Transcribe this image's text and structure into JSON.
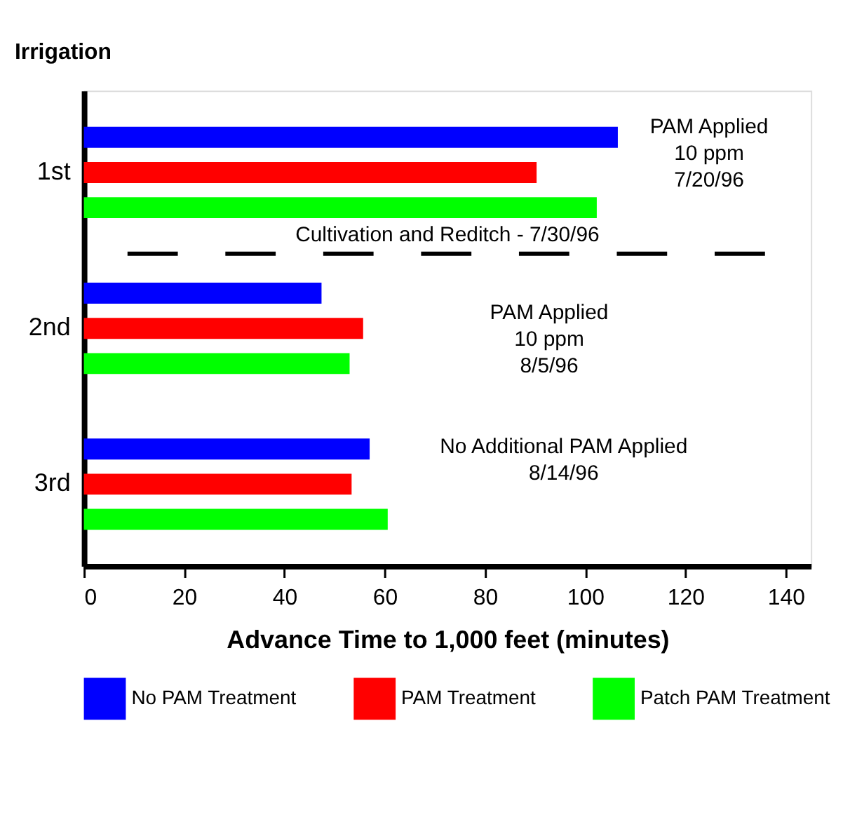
{
  "chart_data": {
    "type": "bar",
    "orientation": "horizontal",
    "xlabel": "Advance Time to 1,000 feet (minutes)",
    "ylabel": "Irrigation",
    "categories": [
      "1st",
      "2nd",
      "3rd"
    ],
    "series": [
      {
        "name": "No PAM Treatment",
        "color": "#0000ff",
        "values": [
          106.5,
          47.4,
          57
        ]
      },
      {
        "name": "PAM Treatment",
        "color": "#ff0000",
        "values": [
          90.3,
          55.7,
          53.4
        ]
      },
      {
        "name": "Patch PAM Treatment",
        "color": "#00ff00",
        "values": [
          102.3,
          53,
          60.6
        ]
      }
    ],
    "xlim": [
      0,
      145
    ],
    "xticks": [
      0,
      20,
      40,
      60,
      80,
      100,
      120,
      140
    ],
    "annotations": [
      "PAM Applied\n10 ppm\n7/20/96",
      "PAM Applied\n10 ppm\n8/5/96",
      "No Additional PAM Applied\n8/14/96"
    ],
    "ref_lines": [
      {
        "axis": "y",
        "label": "Cultivation and Reditch - 7/30/96",
        "line_style": "dashed",
        "color": "#000000"
      }
    ],
    "legend": "bottom",
    "grid": false
  }
}
